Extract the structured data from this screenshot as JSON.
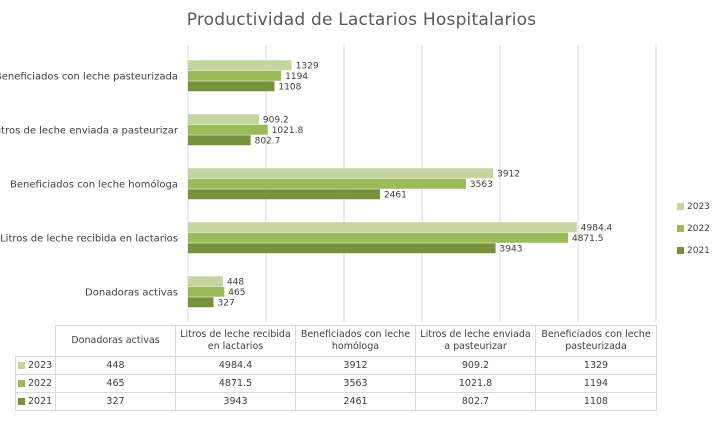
{
  "chart_data": {
    "type": "bar",
    "orientation": "horizontal",
    "title": "Productividad de Lactarios Hospitalarios",
    "categories": [
      "Donadoras activas",
      "Litros de leche recibida en lactarios",
      "Beneficiados con leche homóloga",
      "Litros de leche enviada a pasteurizar",
      "Beneficiados con leche pasteurizada"
    ],
    "table_headers": [
      "Donadoras activas",
      "Litros de leche recibida en lactarios",
      "Beneficiados con leche homóloga",
      "Litros de leche enviada a pasteurizar",
      "Beneficiados con leche pasteurizada"
    ],
    "series": [
      {
        "name": "2023",
        "color": "#c4d6a0",
        "values": [
          448,
          4984.4,
          3912,
          909.2,
          1329
        ],
        "labels": [
          "448",
          "4984.4",
          "3912",
          "909.2",
          "1329"
        ]
      },
      {
        "name": "2022",
        "color": "#9bbb59",
        "values": [
          465,
          4871.5,
          3563,
          1021.8,
          1194
        ],
        "labels": [
          "465",
          "4871.5",
          "3563",
          "1021.8",
          "1194"
        ]
      },
      {
        "name": "2021",
        "color": "#76923c",
        "values": [
          327,
          3943,
          2461,
          802.7,
          1108
        ],
        "labels": [
          "327",
          "3943",
          "2461",
          "802.7",
          "1108"
        ]
      }
    ],
    "xlim": [
      0,
      6000
    ],
    "grid": true,
    "legend_position": "right"
  }
}
